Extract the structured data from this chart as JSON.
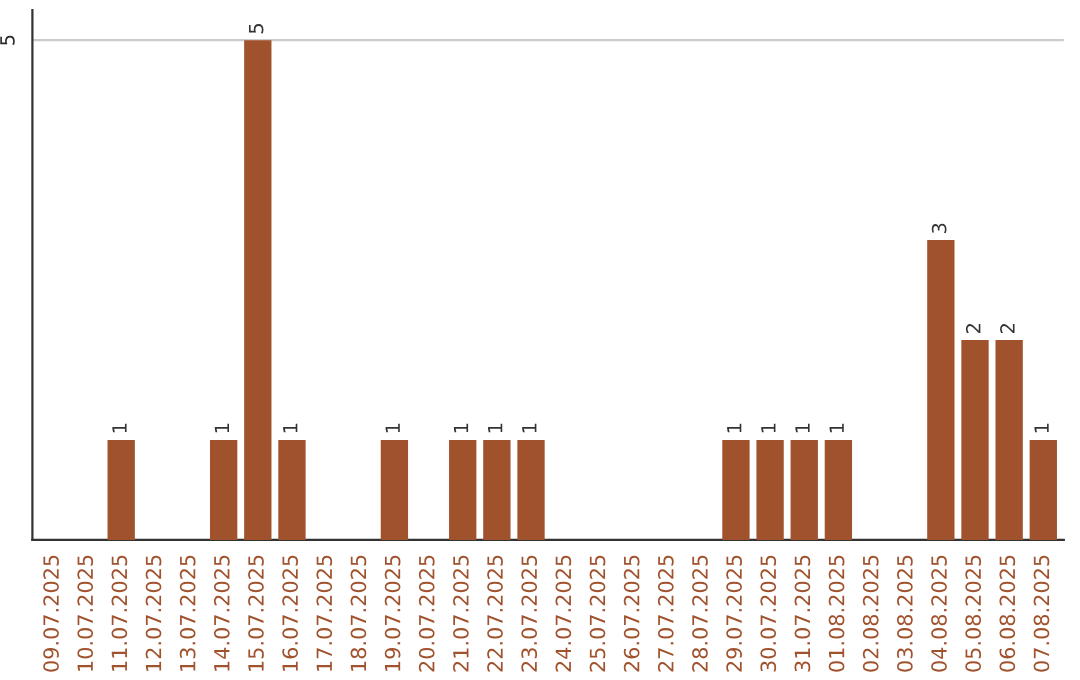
{
  "chart_data": {
    "type": "bar",
    "categories": [
      "09.07.2025",
      "10.07.2025",
      "11.07.2025",
      "12.07.2025",
      "13.07.2025",
      "14.07.2025",
      "15.07.2025",
      "16.07.2025",
      "17.07.2025",
      "18.07.2025",
      "19.07.2025",
      "20.07.2025",
      "21.07.2025",
      "22.07.2025",
      "23.07.2025",
      "24.07.2025",
      "25.07.2025",
      "26.07.2025",
      "27.07.2025",
      "28.07.2025",
      "29.07.2025",
      "30.07.2025",
      "31.07.2025",
      "01.08.2025",
      "02.08.2025",
      "03.08.2025",
      "04.08.2025",
      "05.08.2025",
      "06.08.2025",
      "07.08.2025"
    ],
    "values": [
      null,
      null,
      1,
      null,
      null,
      1,
      5,
      1,
      null,
      null,
      1,
      null,
      1,
      1,
      1,
      null,
      null,
      null,
      null,
      null,
      1,
      1,
      1,
      1,
      null,
      null,
      3,
      2,
      2,
      1
    ],
    "value_labels": [
      null,
      null,
      "1",
      null,
      null,
      "1",
      "5",
      "1",
      null,
      null,
      "1",
      null,
      "1",
      "1",
      "1",
      null,
      null,
      null,
      null,
      null,
      "1",
      "1",
      "1",
      "1",
      null,
      null,
      "3",
      "2",
      "2",
      "1"
    ],
    "color": "#a0522d",
    "ylim": [
      0,
      5.3
    ],
    "yticks": [
      5
    ],
    "grid": "y",
    "legend": false
  }
}
